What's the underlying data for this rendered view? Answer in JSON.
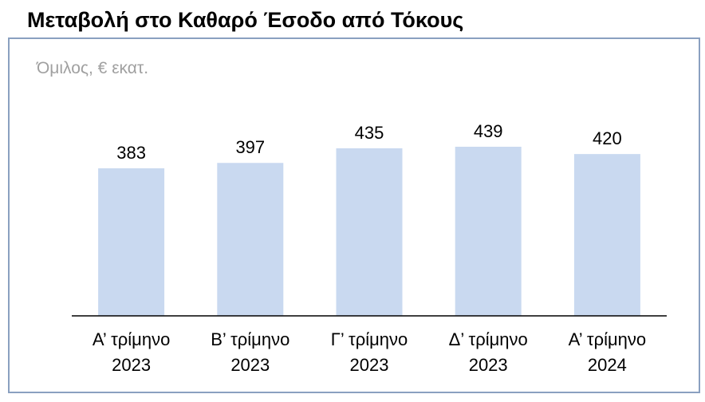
{
  "chart_data": {
    "type": "bar",
    "title": "Μεταβολή στο Καθαρό Έσοδο από Τόκους",
    "subtitle": "Όμιλος, € εκατ.",
    "categories": [
      "Α’ τρίμηνο 2023",
      "Β’ τρίμηνο 2023",
      "Γ’ τρίμηνο 2023",
      "Δ’ τρίμηνο 2023",
      "Α’ τρίμηνο 2024"
    ],
    "values": [
      383,
      397,
      435,
      439,
      420
    ],
    "color": "#c9d9f0",
    "ylim": [
      0,
      500
    ]
  }
}
